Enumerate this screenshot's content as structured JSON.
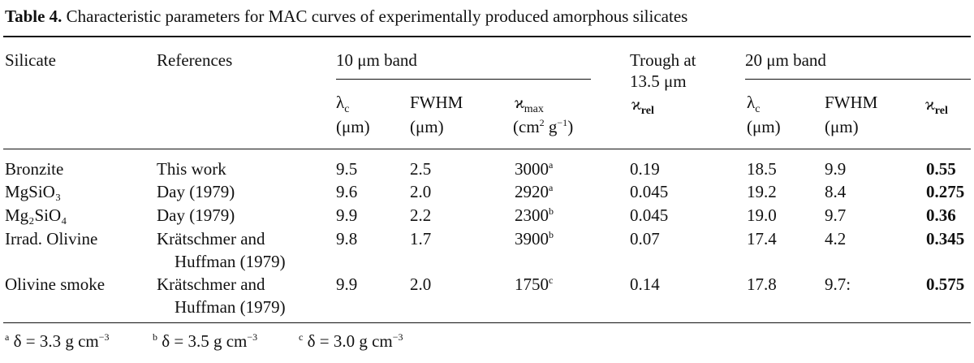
{
  "caption": {
    "label": "Table 4.",
    "text": "Characteristic parameters for MAC curves of experimentally produced amorphous silicates"
  },
  "headers": {
    "silicate": "Silicate",
    "references": "References",
    "band10": "10 μm band",
    "trough_line1": "Trough at",
    "trough_line2": "13.5 μm",
    "trough_sub": "ϰ",
    "band20": "20 μm band",
    "lambda": "λ",
    "lambda_sub": "c",
    "lambda_unit": "(μm)",
    "fwhm": "FWHM",
    "fwhm_unit": "(μm)",
    "kmax": "ϰ",
    "kmax_sub": "max",
    "kmax_unit_a": "(cm",
    "kmax_unit_sup1": "2",
    "kmax_unit_b": " g",
    "kmax_unit_sup2": "−1",
    "kmax_unit_c": ")",
    "krel": "ϰ",
    "krel_sub": "rel"
  },
  "rows": [
    {
      "silicate": "Bronzite",
      "ref1": "This work",
      "ref2": "",
      "l10": "9.5",
      "f10": "2.5",
      "kmax": "3000",
      "note": "a",
      "trough": "0.19",
      "l20": "18.5",
      "f20": "9.9",
      "krel": "0.55"
    },
    {
      "silicate": "MgSiO₃",
      "ref1": "Day (1979)",
      "ref2": "",
      "l10": "9.6",
      "f10": "2.0",
      "kmax": "2920",
      "note": "a",
      "trough": "0.045",
      "l20": "19.2",
      "f20": "8.4",
      "krel": "0.275"
    },
    {
      "silicate": "Mg₂SiO₄",
      "ref1": "Day (1979)",
      "ref2": "",
      "l10": "9.9",
      "f10": "2.2",
      "kmax": "2300",
      "note": "b",
      "trough": "0.045",
      "l20": "19.0",
      "f20": "9.7",
      "krel": "0.36"
    },
    {
      "silicate": "Irrad. Olivine",
      "ref1": "Krätschmer and",
      "ref2": "Huffman (1979)",
      "l10": "9.8",
      "f10": "1.7",
      "kmax": "3900",
      "note": "b",
      "trough": "0.07",
      "l20": "17.4",
      "f20": "4.2",
      "krel": "0.345"
    },
    {
      "silicate": "Olivine smoke",
      "ref1": "Krätschmer and",
      "ref2": "Huffman (1979)",
      "l10": "9.9",
      "f10": "2.0",
      "kmax": "1750",
      "note": "c",
      "trough": "0.14",
      "l20": "17.8",
      "f20": "9.7:",
      "krel": "0.575"
    }
  ],
  "footnotes": [
    {
      "mark": "a",
      "text": "δ = 3.3 g cm",
      "exp": "−3"
    },
    {
      "mark": "b",
      "text": "δ = 3.5 g cm",
      "exp": "−3"
    },
    {
      "mark": "c",
      "text": "δ = 3.0 g cm",
      "exp": "−3"
    }
  ]
}
